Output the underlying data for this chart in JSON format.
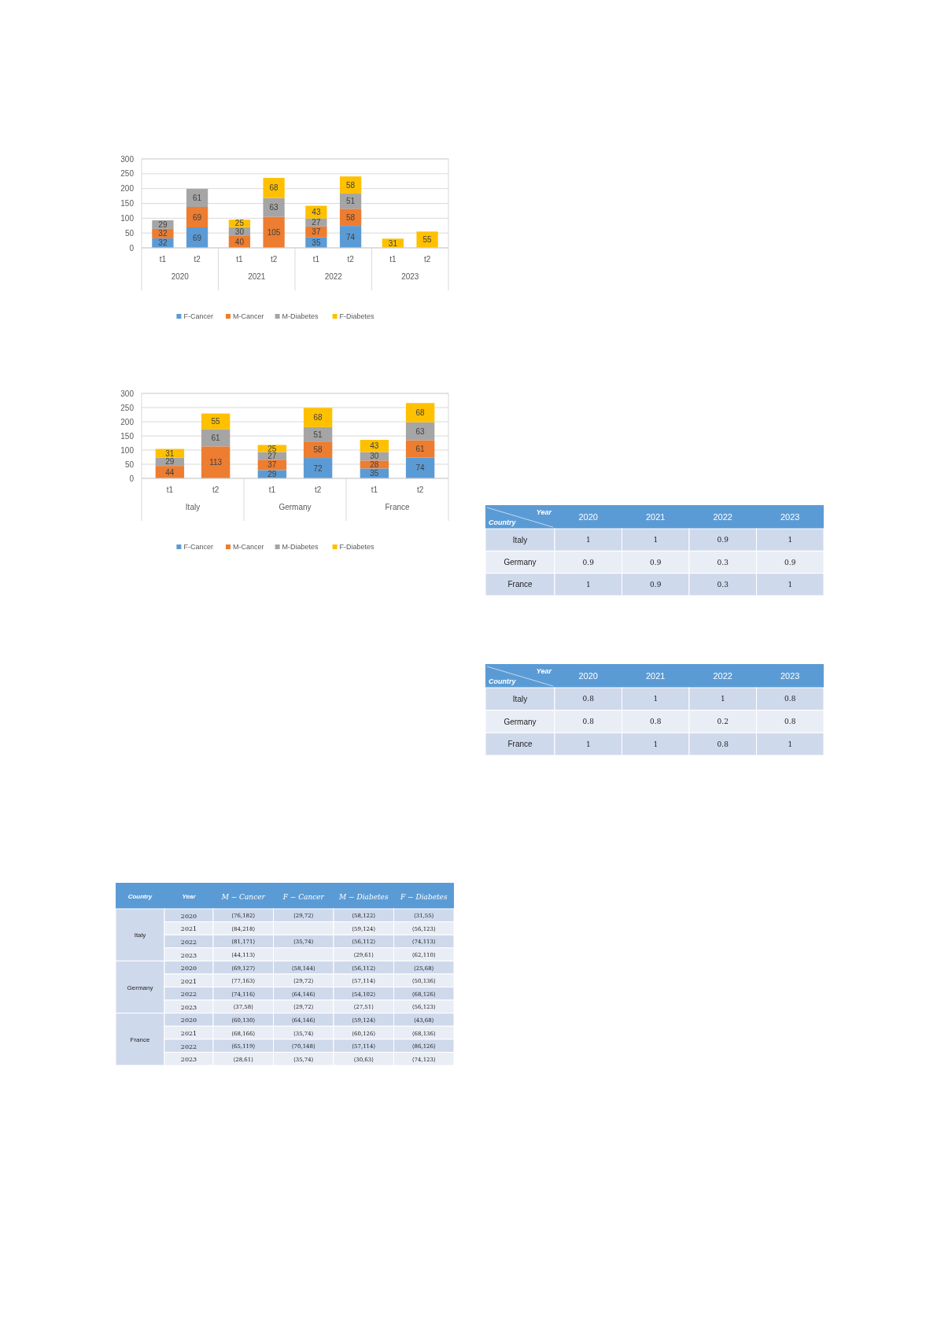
{
  "chart_data": [
    {
      "type": "bar",
      "stacked": true,
      "categories": [
        "t1",
        "t2",
        "t1",
        "t2",
        "t1",
        "t2",
        "t1",
        "t2"
      ],
      "annotations": [
        "2020",
        "2021",
        "2022",
        "2023"
      ],
      "ylim": [
        0,
        300
      ],
      "yticks": [
        0,
        50,
        100,
        150,
        200,
        250,
        300
      ],
      "grid": "y",
      "legend": "bottom",
      "data_labels": true,
      "series": [
        {
          "name": "F-Cancer",
          "color": "#5b9bd5",
          "values": [
            32,
            69,
            null,
            null,
            35,
            74,
            null,
            null
          ]
        },
        {
          "name": "M-Cancer",
          "color": "#ed7d31",
          "values": [
            32,
            69,
            40,
            105,
            37,
            58,
            null,
            null
          ]
        },
        {
          "name": "M-Diabetes",
          "color": "#a5a5a5",
          "values": [
            29,
            61,
            30,
            63,
            27,
            51,
            null,
            null
          ]
        },
        {
          "name": "F-Diabetes",
          "color": "#ffc000",
          "values": [
            null,
            null,
            25,
            68,
            43,
            58,
            31,
            55
          ]
        }
      ]
    },
    {
      "type": "bar",
      "stacked": true,
      "categories": [
        "t1",
        "t2",
        "t1",
        "t2",
        "t1",
        "t2"
      ],
      "annotations": [
        "Italy",
        "Germany",
        "France"
      ],
      "ylim": [
        0,
        300
      ],
      "yticks": [
        0,
        50,
        100,
        150,
        200,
        250,
        300
      ],
      "grid": "y",
      "legend": "bottom",
      "data_labels": true,
      "series": [
        {
          "name": "F-Cancer",
          "color": "#5b9bd5",
          "values": [
            null,
            null,
            29,
            72,
            35,
            74
          ]
        },
        {
          "name": "M-Cancer",
          "color": "#ed7d31",
          "values": [
            44,
            113,
            37,
            58,
            28,
            61
          ]
        },
        {
          "name": "M-Diabetes",
          "color": "#a5a5a5",
          "values": [
            29,
            61,
            27,
            51,
            30,
            63
          ]
        },
        {
          "name": "F-Diabetes",
          "color": "#ffc000",
          "values": [
            31,
            55,
            25,
            68,
            43,
            68
          ]
        }
      ]
    },
    {
      "type": "heatmap",
      "xlabel": "Year",
      "ylabel": "Country",
      "categories": [
        "2020",
        "2021",
        "2022",
        "2023"
      ],
      "y_categories": [
        "Italy",
        "Germany",
        "France"
      ],
      "data_labels": true,
      "cells": [
        [
          1,
          1,
          0.9,
          1
        ],
        [
          0.9,
          0.9,
          0.3,
          0.9
        ],
        [
          1,
          0.9,
          0.3,
          1
        ]
      ]
    },
    {
      "type": "heatmap",
      "xlabel": "Year",
      "ylabel": "Country",
      "categories": [
        "2020",
        "2021",
        "2022",
        "2023"
      ],
      "y_categories": [
        "Italy",
        "Germany",
        "France"
      ],
      "data_labels": true,
      "cells": [
        [
          0.8,
          1,
          1,
          0.8
        ],
        [
          0.8,
          0.8,
          0.2,
          0.8
        ],
        [
          1,
          1,
          0.8,
          1
        ]
      ]
    },
    {
      "type": "heatmap",
      "ylabel": "Year",
      "annotations": [
        "Country",
        "Italy",
        "Germany",
        "France"
      ],
      "categories": [
        "M − Cancer",
        "F − Cancer",
        "M − Diabetes",
        "F − Diabetes"
      ],
      "y_categories": [
        "2020",
        "2021",
        "2022",
        "2023",
        "2020",
        "2021",
        "2022",
        "2023",
        "2020",
        "2021",
        "2022",
        "2023"
      ],
      "cells": [
        [
          null,
          null,
          null,
          null
        ],
        [
          null,
          null,
          null,
          null
        ],
        [
          null,
          null,
          null,
          null
        ],
        [
          null,
          null,
          null,
          null
        ],
        [
          null,
          null,
          null,
          null
        ],
        [
          null,
          null,
          null,
          null
        ],
        [
          null,
          null,
          null,
          null
        ],
        [
          null,
          null,
          null,
          null
        ],
        [
          null,
          null,
          null,
          null
        ],
        [
          null,
          null,
          null,
          null
        ],
        [
          null,
          null,
          null,
          null
        ],
        [
          null,
          null,
          null,
          null
        ]
      ],
      "cell_labels": [
        [
          "⟨76,182⟩",
          "⟨29,72⟩",
          "⟨58,122⟩",
          "⟨31,55⟩"
        ],
        [
          "⟨84,218⟩",
          null,
          "⟨59,124⟩",
          "⟨56,123⟩"
        ],
        [
          "⟨81,171⟩",
          "⟨35,74⟩",
          "⟨56,112⟩",
          "⟨74,113⟩"
        ],
        [
          "⟨44,113⟩",
          null,
          "⟨29,61⟩",
          "⟨62,110⟩"
        ],
        [
          "⟨69,127⟩",
          "⟨58,144⟩",
          "⟨56,112⟩",
          "⟨25,68⟩"
        ],
        [
          "⟨77,163⟩",
          "⟨29,72⟩",
          "⟨57,114⟩",
          "⟨50,136⟩"
        ],
        [
          "⟨74,116⟩",
          "⟨64,146⟩",
          "⟨54,102⟩",
          "⟨68,126⟩"
        ],
        [
          "⟨37,58⟩",
          "⟨29,72⟩",
          "⟨27,51⟩",
          "⟨56,123⟩"
        ],
        [
          "⟨60,130⟩",
          "⟨64,146⟩",
          "⟨59,124⟩",
          "⟨43,68⟩"
        ],
        [
          "⟨68,166⟩",
          "⟨35,74⟩",
          "⟨60,126⟩",
          "⟨68,136⟩"
        ],
        [
          "⟨65,119⟩",
          "⟨70,148⟩",
          "⟨57,114⟩",
          "⟨86,126⟩"
        ],
        [
          "⟨28,61⟩",
          "⟨35,74⟩",
          "⟨30,63⟩",
          "⟨74,123⟩"
        ]
      ]
    }
  ]
}
